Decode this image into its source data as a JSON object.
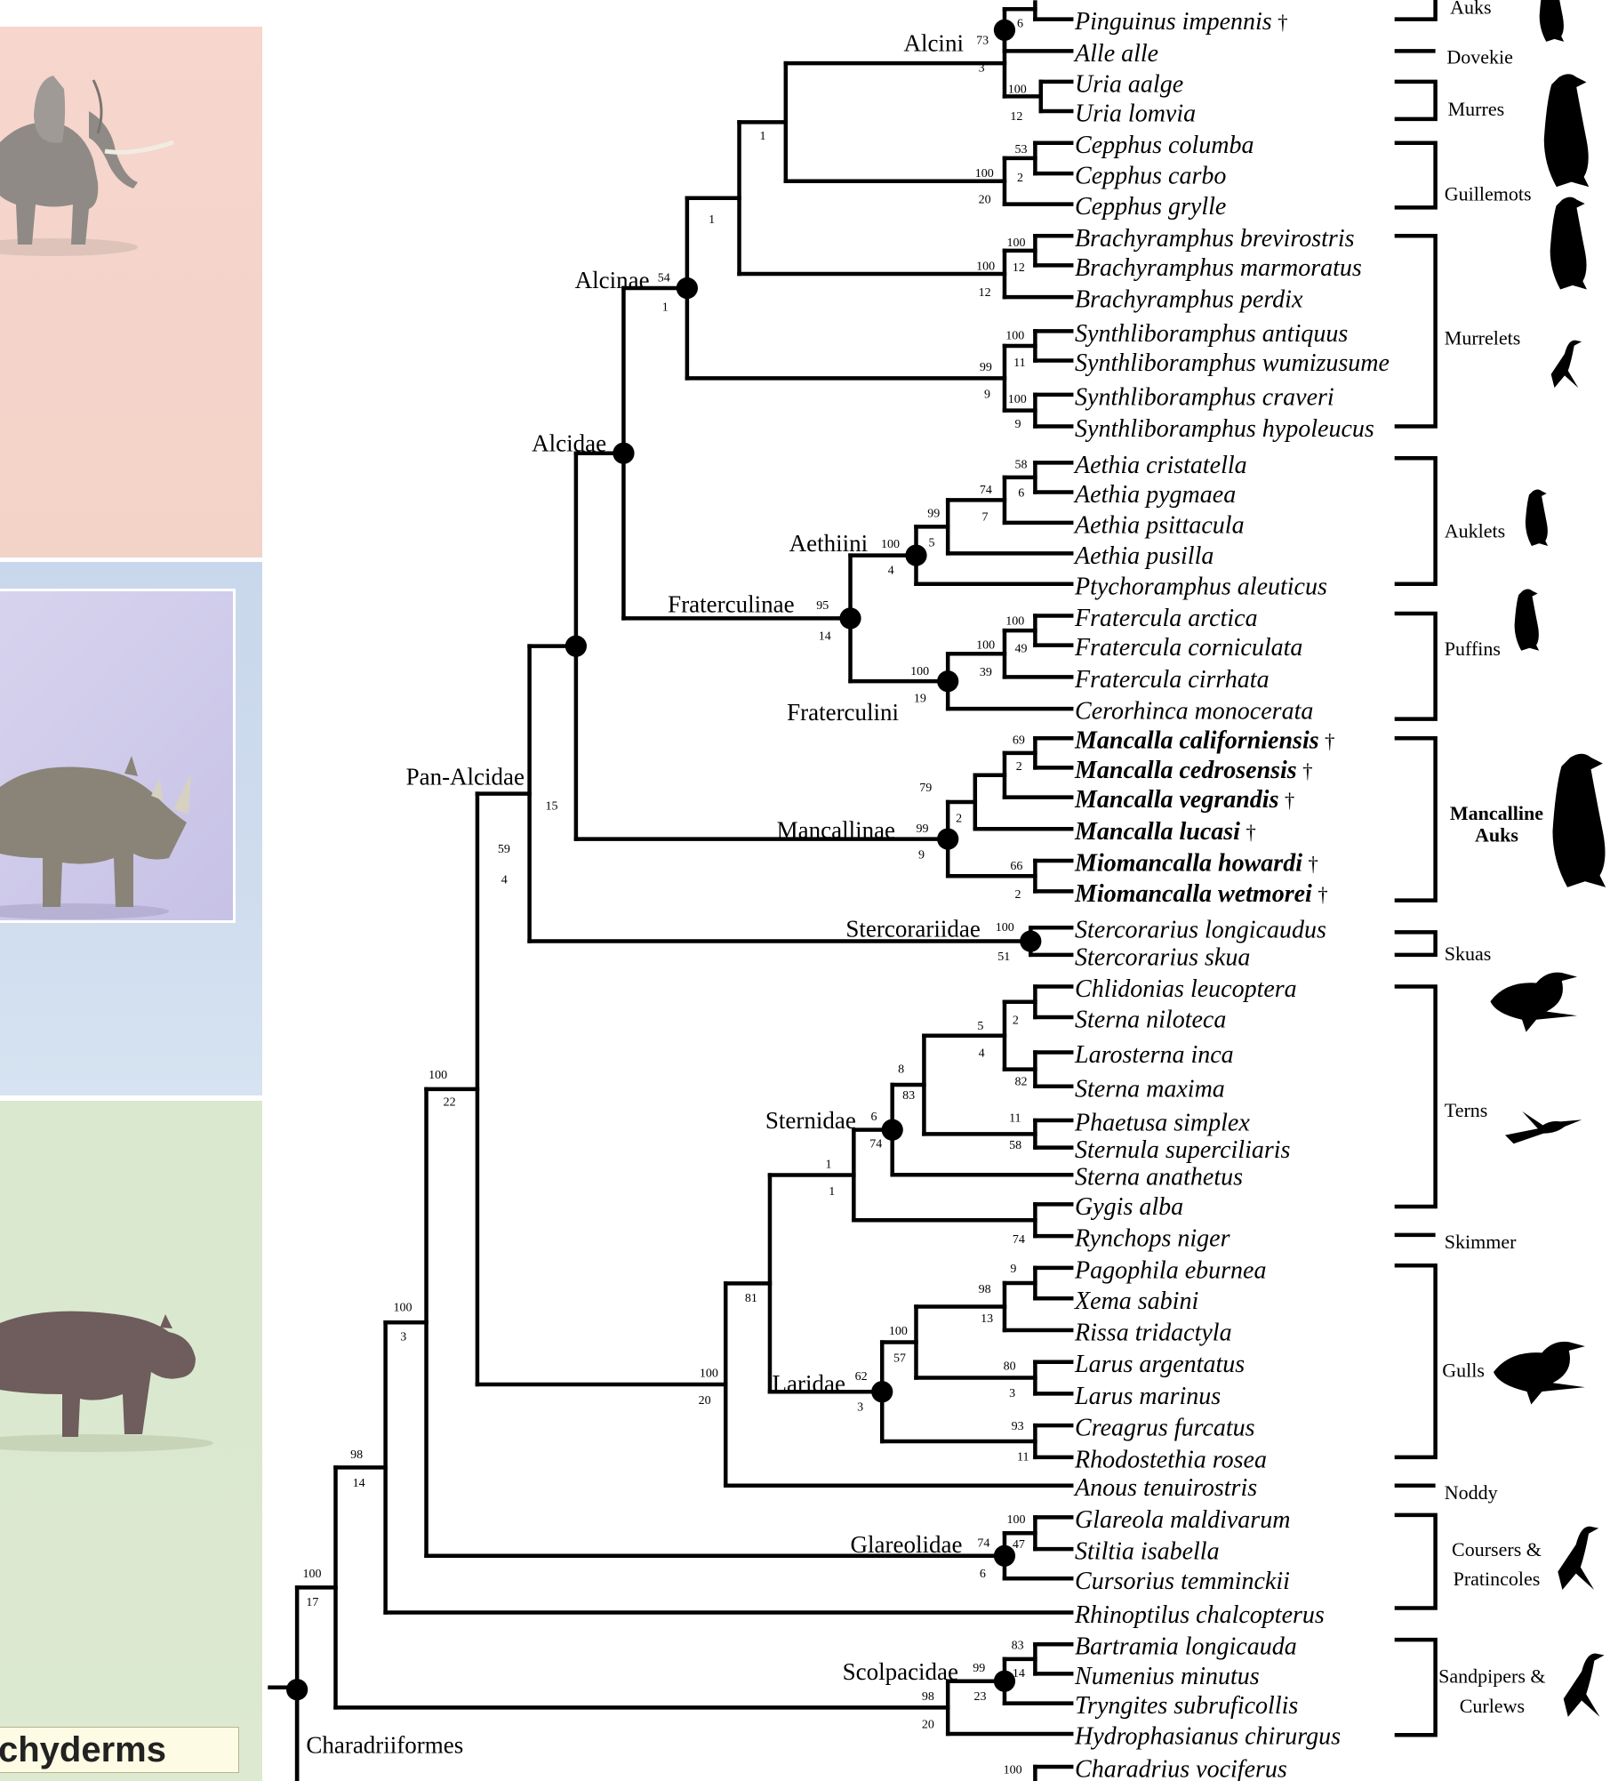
{
  "left_panel_label": "chyderms",
  "taxa": [
    {
      "name": "Pinguinus impennis",
      "fossil": false,
      "extinct": true
    },
    {
      "name": "Alle alle",
      "fossil": false,
      "extinct": false
    },
    {
      "name": "Uria aalge",
      "fossil": false,
      "extinct": false
    },
    {
      "name": "Uria lomvia",
      "fossil": false,
      "extinct": false
    },
    {
      "name": "Cepphus columba",
      "fossil": false,
      "extinct": false
    },
    {
      "name": "Cepphus carbo",
      "fossil": false,
      "extinct": false
    },
    {
      "name": "Cepphus grylle",
      "fossil": false,
      "extinct": false
    },
    {
      "name": "Brachyramphus brevirostris",
      "fossil": false,
      "extinct": false
    },
    {
      "name": "Brachyramphus marmoratus",
      "fossil": false,
      "extinct": false
    },
    {
      "name": "Brachyramphus perdix",
      "fossil": false,
      "extinct": false
    },
    {
      "name": "Synthliboramphus antiquus",
      "fossil": false,
      "extinct": false
    },
    {
      "name": "Synthliboramphus wumizusume",
      "fossil": false,
      "extinct": false
    },
    {
      "name": "Synthliboramphus craveri",
      "fossil": false,
      "extinct": false
    },
    {
      "name": "Synthliboramphus hypoleucus",
      "fossil": false,
      "extinct": false
    },
    {
      "name": "Aethia cristatella",
      "fossil": false,
      "extinct": false
    },
    {
      "name": "Aethia pygmaea",
      "fossil": false,
      "extinct": false
    },
    {
      "name": "Aethia psittacula",
      "fossil": false,
      "extinct": false
    },
    {
      "name": "Aethia pusilla",
      "fossil": false,
      "extinct": false
    },
    {
      "name": "Ptychoramphus aleuticus",
      "fossil": false,
      "extinct": false
    },
    {
      "name": "Fratercula arctica",
      "fossil": false,
      "extinct": false
    },
    {
      "name": "Fratercula corniculata",
      "fossil": false,
      "extinct": false
    },
    {
      "name": "Fratercula cirrhata",
      "fossil": false,
      "extinct": false
    },
    {
      "name": "Cerorhinca monocerata",
      "fossil": false,
      "extinct": false
    },
    {
      "name": "Mancalla californiensis",
      "fossil": true,
      "extinct": true
    },
    {
      "name": "Mancalla cedrosensis",
      "fossil": true,
      "extinct": true
    },
    {
      "name": "Mancalla vegrandis",
      "fossil": true,
      "extinct": true
    },
    {
      "name": "Mancalla lucasi",
      "fossil": true,
      "extinct": true
    },
    {
      "name": "Miomancalla howardi",
      "fossil": true,
      "extinct": true
    },
    {
      "name": "Miomancalla wetmorei",
      "fossil": true,
      "extinct": true
    },
    {
      "name": "Stercorarius longicaudus",
      "fossil": false,
      "extinct": false
    },
    {
      "name": "Stercorarius skua",
      "fossil": false,
      "extinct": false
    },
    {
      "name": "Chlidonias leucoptera",
      "fossil": false,
      "extinct": false
    },
    {
      "name": "Sterna niloteca",
      "fossil": false,
      "extinct": false
    },
    {
      "name": "Larosterna inca",
      "fossil": false,
      "extinct": false
    },
    {
      "name": "Sterna maxima",
      "fossil": false,
      "extinct": false
    },
    {
      "name": "Phaetusa simplex",
      "fossil": false,
      "extinct": false
    },
    {
      "name": "Sternula superciliaris",
      "fossil": false,
      "extinct": false
    },
    {
      "name": "Sterna anathetus",
      "fossil": false,
      "extinct": false
    },
    {
      "name": "Gygis alba",
      "fossil": false,
      "extinct": false
    },
    {
      "name": "Rynchops niger",
      "fossil": false,
      "extinct": false
    },
    {
      "name": "Pagophila eburnea",
      "fossil": false,
      "extinct": false
    },
    {
      "name": "Xema sabini",
      "fossil": false,
      "extinct": false
    },
    {
      "name": "Rissa tridactyla",
      "fossil": false,
      "extinct": false
    },
    {
      "name": "Larus argentatus",
      "fossil": false,
      "extinct": false
    },
    {
      "name": "Larus marinus",
      "fossil": false,
      "extinct": false
    },
    {
      "name": "Creagrus furcatus",
      "fossil": false,
      "extinct": false
    },
    {
      "name": "Rhodostethia rosea",
      "fossil": false,
      "extinct": false
    },
    {
      "name": "Anous tenuirostris",
      "fossil": false,
      "extinct": false
    },
    {
      "name": "Glareola maldivarum",
      "fossil": false,
      "extinct": false
    },
    {
      "name": "Stiltia isabella",
      "fossil": false,
      "extinct": false
    },
    {
      "name": "Cursorius temminckii",
      "fossil": false,
      "extinct": false
    },
    {
      "name": "Rhinoptilus chalcopterus",
      "fossil": false,
      "extinct": false
    },
    {
      "name": "Bartramia longicauda",
      "fossil": false,
      "extinct": false
    },
    {
      "name": "Numenius minutus",
      "fossil": false,
      "extinct": false
    },
    {
      "name": "Tryngites subruficollis",
      "fossil": false,
      "extinct": false
    },
    {
      "name": "Hydrophasianus chirurgus",
      "fossil": false,
      "extinct": false
    },
    {
      "name": "Charadrius vociferus",
      "fossil": false,
      "extinct": false
    }
  ],
  "clades": [
    "Alcini",
    "Alcinae",
    "Alcidae",
    "Aethiini",
    "Fraterculinae",
    "Fraterculini",
    "Pan-Alcidae",
    "Mancallinae",
    "Stercorariidae",
    "Sternidae",
    "Laridae",
    "Glareolidae",
    "Scolpacidae",
    "Charadriiformes"
  ],
  "support_values": [
    "6",
    "73",
    "3",
    "100",
    "12",
    "53",
    "100",
    "2",
    "20",
    "1",
    "1",
    "100",
    "100",
    "12",
    "12",
    "54",
    "1",
    "100",
    "11",
    "99",
    "9",
    "100",
    "9",
    "58",
    "74",
    "6",
    "99",
    "7",
    "100",
    "5",
    "4",
    "95",
    "14",
    "100",
    "100",
    "49",
    "39",
    "100",
    "19",
    "69",
    "2",
    "79",
    "2",
    "99",
    "9",
    "66",
    "2",
    "100",
    "15",
    "59",
    "4",
    "100",
    "22",
    "51",
    "5",
    "2",
    "4",
    "82",
    "8",
    "83",
    "6",
    "74",
    "11",
    "58",
    "1",
    "1",
    "74",
    "81",
    "9",
    "98",
    "13",
    "100",
    "57",
    "80",
    "3",
    "62",
    "3",
    "93",
    "11",
    "100",
    "20",
    "100",
    "47",
    "74",
    "6",
    "100",
    "3",
    "98",
    "14",
    "100",
    "17",
    "83",
    "99",
    "14",
    "23",
    "98",
    "20",
    "100"
  ],
  "groups": [
    "Auks",
    "Dovekie",
    "Murres",
    "Guillemots",
    "Murrelets",
    "Auklets",
    "Puffins",
    "Mancalline Auks",
    "Skuas",
    "Terns",
    "Skimmer",
    "Gulls",
    "Noddy",
    "Coursers & Pratincoles",
    "Sandpipers & Curlews"
  ],
  "extinct_marker": "†",
  "colors": {
    "line": "#000000",
    "elephant_panel": "#f6d6cd",
    "rhino_panel": "#c9d7ec",
    "hippo_panel": "#d9e8cf",
    "label_box": "#fdfbe4"
  }
}
